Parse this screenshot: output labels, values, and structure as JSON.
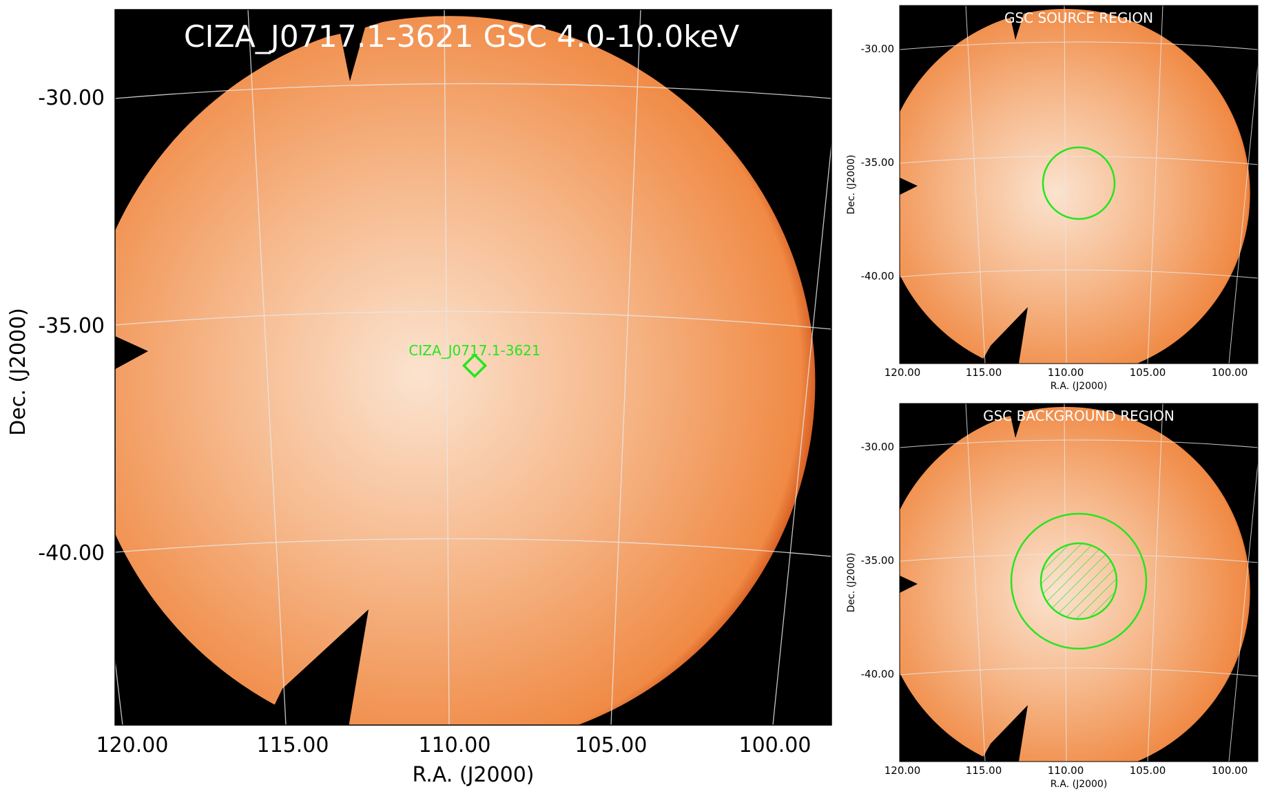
{
  "colors": {
    "frame_background": "#000000",
    "disk_center": "#fbe3cf",
    "disk_mid": "#f6b88b",
    "disk_edge": "#f08a45",
    "disk_rim": "#c23a06",
    "grid": "#e8e8e8",
    "region": "#22e61e",
    "title_text": "#ffffff",
    "axis_text": "#000000"
  },
  "main_panel": {
    "title": "CIZA_J0717.1-3621 GSC 4.0-10.0keV",
    "xlabel": "R.A. (J2000)",
    "ylabel": "Dec. (J2000)",
    "x_ticks": [
      "120.00",
      "115.00",
      "110.00",
      "105.00",
      "100.00"
    ],
    "y_ticks": [
      "-30.00",
      "-35.00",
      "-40.00"
    ],
    "source": {
      "label": "CIZA_J0717.1-3621",
      "ra": 109.29,
      "dec": -36.35,
      "marker": "diamond"
    }
  },
  "source_panel": {
    "title": "GSC SOURCE REGION",
    "xlabel": "R.A. (J2000)",
    "ylabel": "Dec. (J2000)",
    "x_ticks": [
      "120.00",
      "115.00",
      "110.00",
      "105.00",
      "100.00"
    ],
    "y_ticks": [
      "-30.00",
      "-35.00",
      "-40.00"
    ],
    "region": {
      "shape": "circle",
      "ra": 109.29,
      "dec": -36.35
    }
  },
  "background_panel": {
    "title": "GSC BACKGROUND REGION",
    "xlabel": "R.A. (J2000)",
    "ylabel": "Dec. (J2000)",
    "x_ticks": [
      "120.00",
      "115.00",
      "110.00",
      "105.00",
      "100.00"
    ],
    "y_ticks": [
      "-30.00",
      "-35.00",
      "-40.00"
    ],
    "region": {
      "shape": "annulus",
      "ra": 109.29,
      "dec": -36.35,
      "inner_excluded": true
    }
  }
}
